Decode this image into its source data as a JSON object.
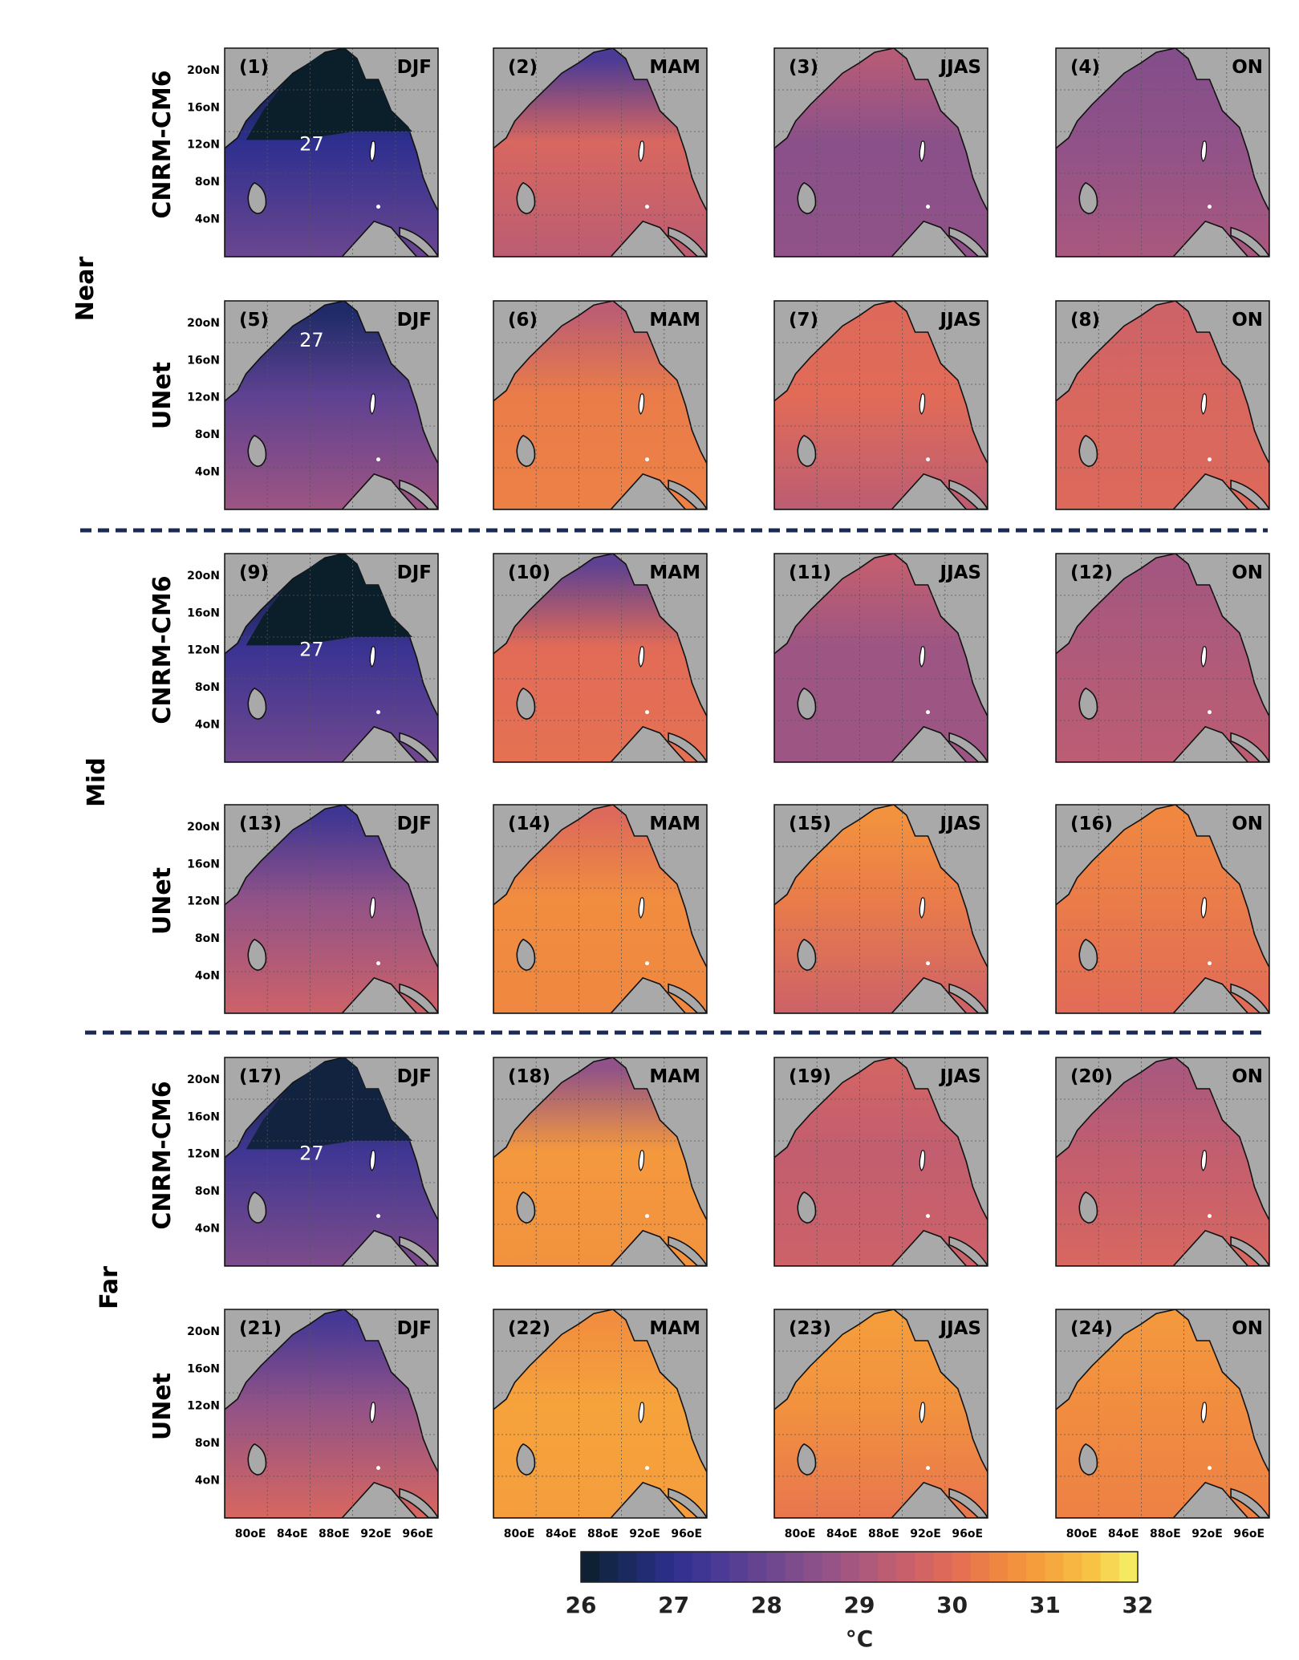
{
  "chart_data": {
    "type": "heatmap",
    "title": "",
    "description_units": "°C",
    "groups": [
      "Near",
      "Mid",
      "Far"
    ],
    "models": [
      "CNRM-CM6",
      "UNet"
    ],
    "seasons": [
      "DJF",
      "MAM",
      "JJAS",
      "ON"
    ],
    "lat_ticks": [
      "4oN",
      "8oN",
      "12oN",
      "16oN",
      "20oN"
    ],
    "lon_ticks": [
      "80oE",
      "84oE",
      "88oE",
      "92oE",
      "96oE"
    ],
    "colorbar": {
      "min": 26,
      "max": 32,
      "ticks": [
        26,
        27,
        28,
        29,
        30,
        31,
        32
      ],
      "label": "°C",
      "colors": [
        "#0b1f2a",
        "#1a2a5e",
        "#2e2f8f",
        "#4b3a96",
        "#6a4690",
        "#8a508a",
        "#a9587e",
        "#c8606c",
        "#e26b57",
        "#f08740",
        "#f6a33c",
        "#f8c344",
        "#f4f26a"
      ]
    },
    "panels": [
      {
        "id": "(1)",
        "season": "DJF",
        "model": "CNRM-CM6",
        "group": "Near",
        "contour_label": "27",
        "mean_sst": 27.8,
        "north_sst": 26.0,
        "mid_sst": 27.0,
        "south_sst": 28.0
      },
      {
        "id": "(2)",
        "season": "MAM",
        "model": "CNRM-CM6",
        "group": "Near",
        "contour_label": "",
        "mean_sst": 29.6,
        "north_sst": 27.5,
        "mid_sst": 29.8,
        "south_sst": 29.3
      },
      {
        "id": "(3)",
        "season": "JJAS",
        "model": "CNRM-CM6",
        "group": "Near",
        "contour_label": "",
        "mean_sst": 28.7,
        "north_sst": 29.2,
        "mid_sst": 28.5,
        "south_sst": 28.6
      },
      {
        "id": "(4)",
        "season": "ON",
        "model": "CNRM-CM6",
        "group": "Near",
        "contour_label": "",
        "mean_sst": 28.8,
        "north_sst": 28.4,
        "mid_sst": 28.6,
        "south_sst": 29.0
      },
      {
        "id": "(5)",
        "season": "DJF",
        "model": "UNet",
        "group": "Near",
        "contour_label": "27",
        "mean_sst": 28.0,
        "north_sst": 26.6,
        "mid_sst": 27.8,
        "south_sst": 28.8
      },
      {
        "id": "(6)",
        "season": "MAM",
        "model": "UNet",
        "group": "Near",
        "contour_label": "",
        "mean_sst": 30.2,
        "north_sst": 29.3,
        "mid_sst": 30.3,
        "south_sst": 30.4
      },
      {
        "id": "(7)",
        "season": "JJAS",
        "model": "UNet",
        "group": "Near",
        "contour_label": "",
        "mean_sst": 29.8,
        "north_sst": 29.9,
        "mid_sst": 30.0,
        "south_sst": 29.3
      },
      {
        "id": "(8)",
        "season": "ON",
        "model": "UNet",
        "group": "Near",
        "contour_label": "",
        "mean_sst": 29.8,
        "north_sst": 29.6,
        "mid_sst": 29.8,
        "south_sst": 29.9
      },
      {
        "id": "(9)",
        "season": "DJF",
        "model": "CNRM-CM6",
        "group": "Mid",
        "contour_label": "27",
        "mean_sst": 27.9,
        "north_sst": 26.0,
        "mid_sst": 27.2,
        "south_sst": 28.1
      },
      {
        "id": "(10)",
        "season": "MAM",
        "model": "CNRM-CM6",
        "group": "Mid",
        "contour_label": "",
        "mean_sst": 29.8,
        "north_sst": 27.8,
        "mid_sst": 30.0,
        "south_sst": 30.1
      },
      {
        "id": "(11)",
        "season": "JJAS",
        "model": "CNRM-CM6",
        "group": "Mid",
        "contour_label": "",
        "mean_sst": 29.0,
        "north_sst": 29.4,
        "mid_sst": 28.8,
        "south_sst": 28.8
      },
      {
        "id": "(12)",
        "season": "ON",
        "model": "CNRM-CM6",
        "group": "Mid",
        "contour_label": "",
        "mean_sst": 29.2,
        "north_sst": 28.9,
        "mid_sst": 29.1,
        "south_sst": 29.3
      },
      {
        "id": "(13)",
        "season": "DJF",
        "model": "UNet",
        "group": "Mid",
        "contour_label": "",
        "mean_sst": 28.6,
        "north_sst": 27.3,
        "mid_sst": 28.6,
        "south_sst": 29.6
      },
      {
        "id": "(14)",
        "season": "MAM",
        "model": "UNet",
        "group": "Mid",
        "contour_label": "",
        "mean_sst": 30.5,
        "north_sst": 29.9,
        "mid_sst": 30.6,
        "south_sst": 30.5
      },
      {
        "id": "(15)",
        "season": "JJAS",
        "model": "UNet",
        "group": "Mid",
        "contour_label": "",
        "mean_sst": 30.2,
        "north_sst": 30.7,
        "mid_sst": 30.3,
        "south_sst": 29.6
      },
      {
        "id": "(16)",
        "season": "ON",
        "model": "UNet",
        "group": "Mid",
        "contour_label": "",
        "mean_sst": 30.3,
        "north_sst": 30.5,
        "mid_sst": 30.3,
        "south_sst": 30.0
      },
      {
        "id": "(17)",
        "season": "DJF",
        "model": "CNRM-CM6",
        "group": "Far",
        "contour_label": "27",
        "mean_sst": 28.0,
        "north_sst": 26.2,
        "mid_sst": 27.3,
        "south_sst": 28.3
      },
      {
        "id": "(18)",
        "season": "MAM",
        "model": "CNRM-CM6",
        "group": "Far",
        "contour_label": "",
        "mean_sst": 30.4,
        "north_sst": 28.6,
        "mid_sst": 30.8,
        "south_sst": 30.7
      },
      {
        "id": "(19)",
        "season": "JJAS",
        "model": "CNRM-CM6",
        "group": "Far",
        "contour_label": "",
        "mean_sst": 29.5,
        "north_sst": 29.7,
        "mid_sst": 29.4,
        "south_sst": 29.6
      },
      {
        "id": "(20)",
        "season": "ON",
        "model": "CNRM-CM6",
        "group": "Far",
        "contour_label": "",
        "mean_sst": 29.4,
        "north_sst": 29.0,
        "mid_sst": 29.4,
        "south_sst": 29.8
      },
      {
        "id": "(21)",
        "season": "DJF",
        "model": "UNet",
        "group": "Far",
        "contour_label": "",
        "mean_sst": 28.7,
        "north_sst": 27.4,
        "mid_sst": 28.6,
        "south_sst": 29.8
      },
      {
        "id": "(22)",
        "season": "MAM",
        "model": "UNet",
        "group": "Far",
        "contour_label": "",
        "mean_sst": 30.9,
        "north_sst": 30.6,
        "mid_sst": 31.0,
        "south_sst": 30.9
      },
      {
        "id": "(23)",
        "season": "JJAS",
        "model": "UNet",
        "group": "Far",
        "contour_label": "",
        "mean_sst": 30.6,
        "north_sst": 30.9,
        "mid_sst": 30.7,
        "south_sst": 30.2
      },
      {
        "id": "(24)",
        "season": "ON",
        "model": "UNet",
        "group": "Far",
        "contour_label": "",
        "mean_sst": 30.6,
        "north_sst": 30.8,
        "mid_sst": 30.6,
        "south_sst": 30.4
      }
    ]
  }
}
